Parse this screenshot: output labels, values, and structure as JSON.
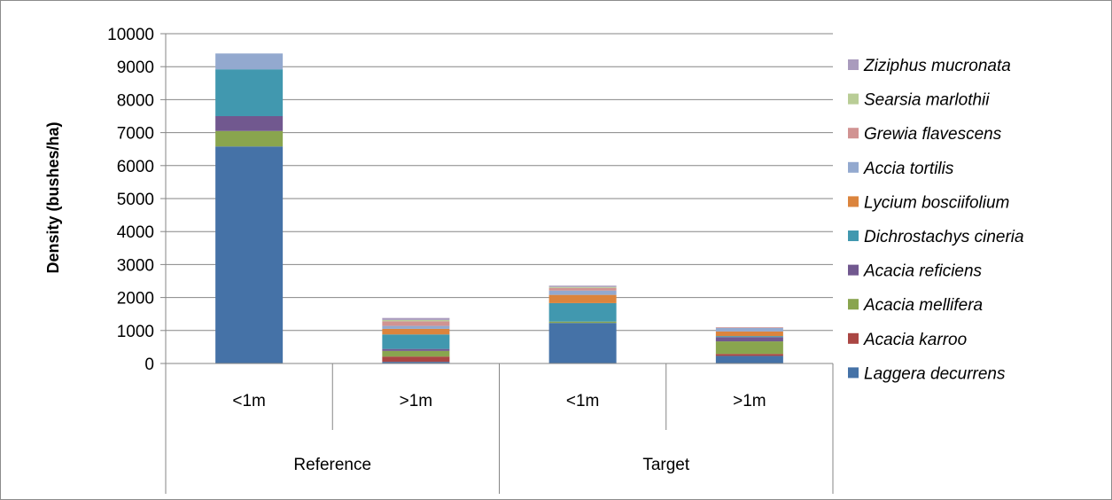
{
  "chart_data": {
    "type": "bar",
    "stacked": true,
    "ylabel": "Density (bushes/ha)",
    "xlabel": "",
    "ylim": [
      0,
      10000
    ],
    "yticks": [
      0,
      1000,
      2000,
      3000,
      4000,
      5000,
      6000,
      7000,
      8000,
      9000,
      10000
    ],
    "grid": true,
    "legend_position": "right",
    "groups": [
      "Reference",
      "Target"
    ],
    "categories": [
      "<1m",
      ">1m",
      "<1m",
      ">1m"
    ],
    "category_groups": [
      "Reference",
      "Reference",
      "Target",
      "Target"
    ],
    "series": [
      {
        "name": "Laggera decurrens",
        "color": "#4572A7",
        "values": [
          6580,
          50,
          1230,
          230
        ]
      },
      {
        "name": "Acacia karroo",
        "color": "#AA4643",
        "values": [
          0,
          160,
          0,
          60
        ]
      },
      {
        "name": "Acacia mellifera",
        "color": "#89A54E",
        "values": [
          470,
          170,
          40,
          380
        ]
      },
      {
        "name": "Acacia reficiens",
        "color": "#71588F",
        "values": [
          450,
          60,
          0,
          130
        ]
      },
      {
        "name": "Dichrostachys cineria",
        "color": "#4198AF",
        "values": [
          1420,
          440,
          560,
          30
        ]
      },
      {
        "name": "Lycium bosciifolium",
        "color": "#DB843D",
        "values": [
          0,
          170,
          250,
          140
        ]
      },
      {
        "name": "Accia tortilis",
        "color": "#93A9CF",
        "values": [
          480,
          90,
          130,
          110
        ]
      },
      {
        "name": "Grewia flavescens",
        "color": "#D19392",
        "values": [
          0,
          140,
          80,
          20
        ]
      },
      {
        "name": "Searsia marlothii",
        "color": "#B9CD96",
        "values": [
          0,
          40,
          30,
          0
        ]
      },
      {
        "name": "Ziziphus mucronata",
        "color": "#A99BBD",
        "values": [
          0,
          60,
          40,
          0
        ]
      }
    ]
  }
}
